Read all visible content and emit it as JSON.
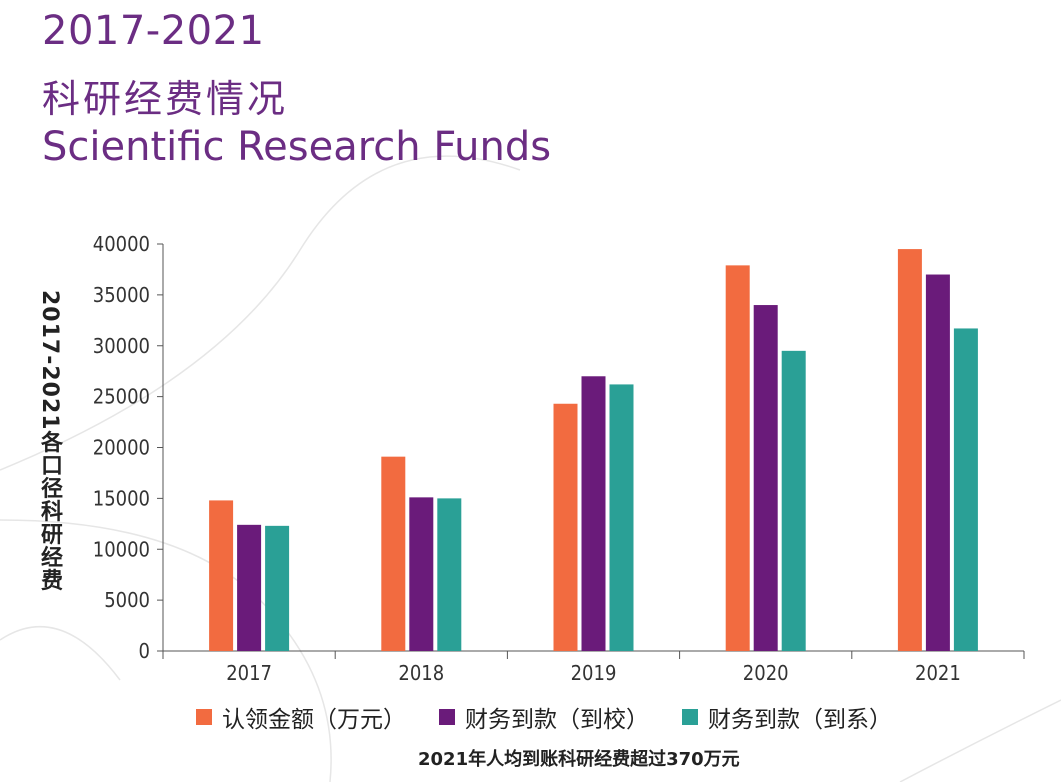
{
  "title": {
    "years": "2017-2021",
    "chinese": "科研经费情况",
    "english": "Scientific Research Funds"
  },
  "chart_data": {
    "type": "bar",
    "categories": [
      "2017",
      "2018",
      "2019",
      "2020",
      "2021"
    ],
    "series": [
      {
        "name": "认领金额（万元）",
        "color": "#f26b40",
        "values": [
          14800,
          19100,
          24300,
          37900,
          39500
        ]
      },
      {
        "name": "财务到款（到校）",
        "color": "#6a1b7a",
        "values": [
          12400,
          15100,
          27000,
          34000,
          37000
        ]
      },
      {
        "name": "财务到款（到系）",
        "color": "#2aa096",
        "values": [
          12300,
          15000,
          26200,
          29500,
          31700
        ]
      }
    ],
    "ylabel": "2017-2021各口径科研经费",
    "ylim": [
      0,
      40000
    ],
    "yticks": [
      0,
      5000,
      10000,
      15000,
      20000,
      25000,
      30000,
      35000,
      40000
    ],
    "grid": false,
    "legend_position": "bottom"
  },
  "note": "2021年人均到账科研经费超过370万元",
  "colors": {
    "title": "#6b2d83",
    "axis": "#555555"
  }
}
